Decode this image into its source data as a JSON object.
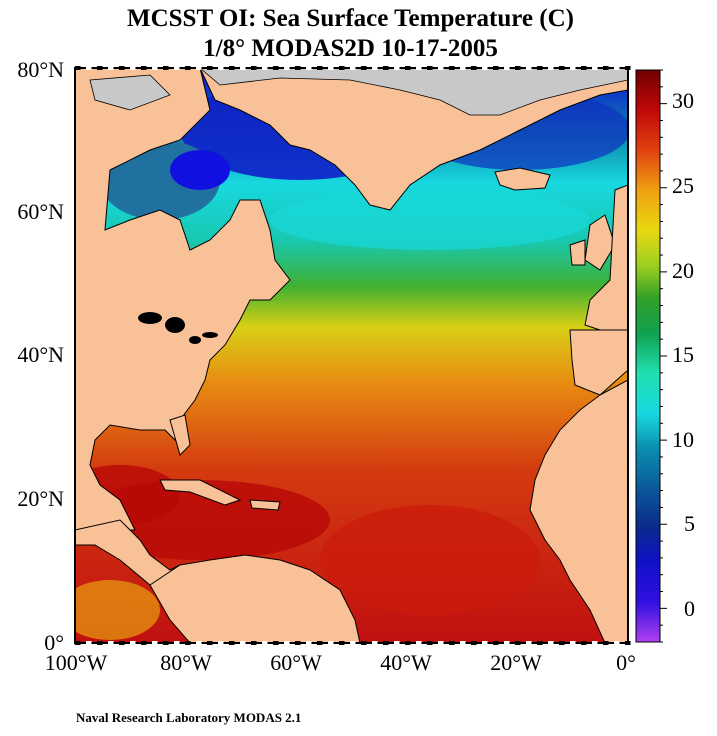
{
  "title_line1": "MCSST OI:  Sea Surface Temperature (C)",
  "title_line2": "1/8° MODAS2D 10-17-2005",
  "lat_labels": [
    "80°N",
    "60°N",
    "40°N",
    "20°N",
    "0°"
  ],
  "lon_labels": [
    "100°W",
    "80°W",
    "60°W",
    "40°W",
    "20°W",
    "0°"
  ],
  "colorbar": {
    "ticks": [
      "30",
      "25",
      "20",
      "15",
      "10",
      "5",
      "0"
    ],
    "range": [
      -2,
      32
    ],
    "unit": "C",
    "palette": [
      "#9b30e8",
      "#5a20e0",
      "#1010d8",
      "#0a2ab8",
      "#0a4a9a",
      "#0a6a9e",
      "#0c88aa",
      "#10aacc",
      "#18d0e0",
      "#20e8d0",
      "#18d8a0",
      "#18c070",
      "#20a040",
      "#40b030",
      "#80c820",
      "#c0d818",
      "#e8d810",
      "#f0b010",
      "#f08a10",
      "#e86010",
      "#e03010",
      "#d01010",
      "#b00808",
      "#800000"
    ]
  },
  "regions": {
    "land_color": "#f9c197",
    "ice_color": "#c8c8c8",
    "coast_color": "#000000"
  },
  "footer": "Naval Research Laboratory  MODAS 2.1"
}
